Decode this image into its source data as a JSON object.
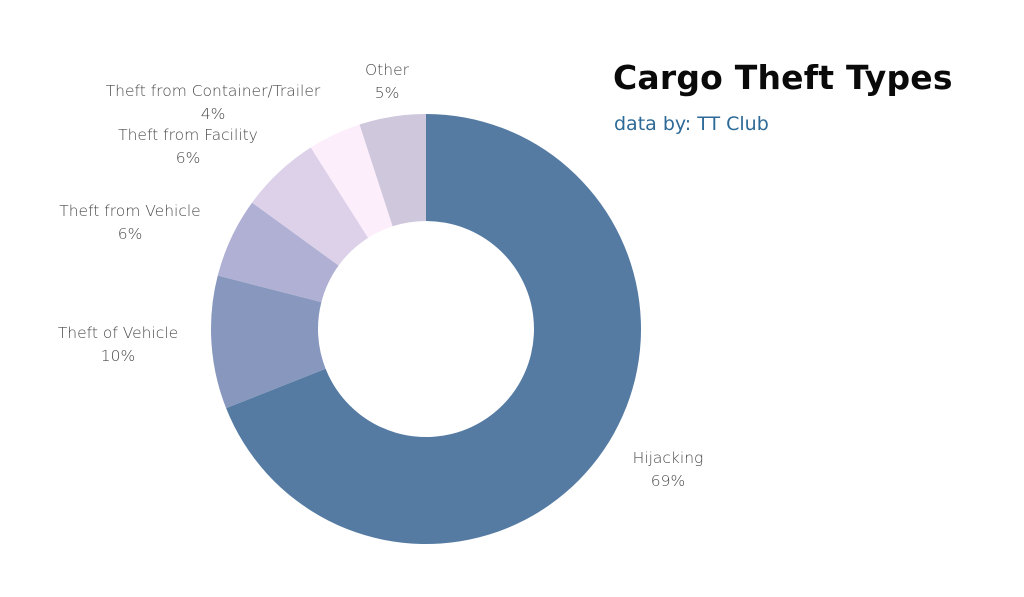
{
  "chart_data": {
    "type": "pie",
    "variant": "donut",
    "title": "Cargo Theft Types",
    "subtitle": "data by: TT Club",
    "categories": [
      "Hijacking",
      "Theft of Vehicle",
      "Theft from Vehicle",
      "Theft from Facility",
      "Theft from Container/Trailer",
      "Other"
    ],
    "values": [
      69,
      10,
      6,
      6,
      4,
      5
    ],
    "value_labels": [
      "69%",
      "10%",
      "6%",
      "6%",
      "4%",
      "5%"
    ],
    "colors": [
      "#557ba3",
      "#8797bd",
      "#afb0d3",
      "#dcd1e9",
      "#fdeefc",
      "#cfc7dc"
    ],
    "legend": "none",
    "start_angle": "top",
    "direction": "clockwise"
  }
}
